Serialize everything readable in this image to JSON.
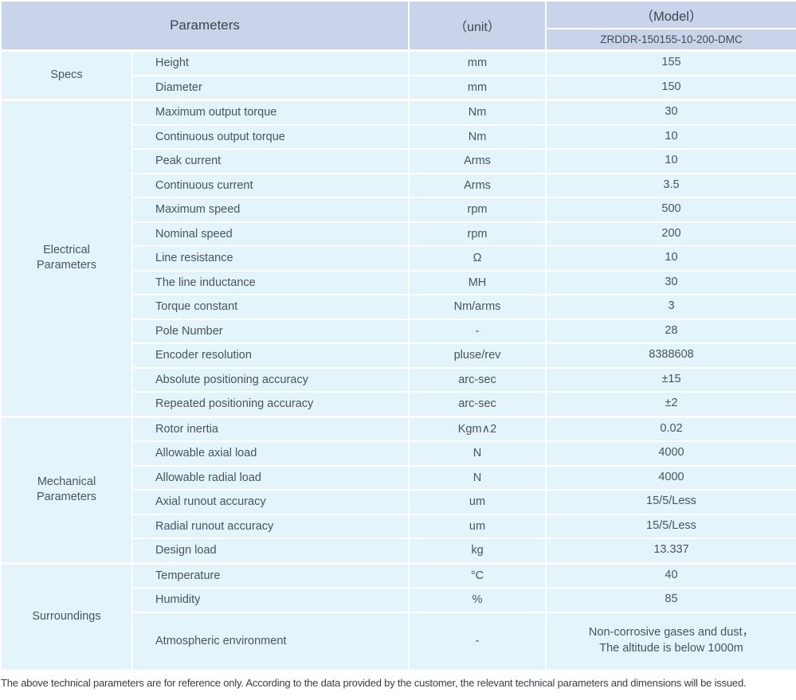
{
  "colors": {
    "header_bg": "#c9d4ea",
    "body_bg": "#e3f4fb",
    "grid": "#ffffff",
    "text": "#4b535c"
  },
  "table": {
    "header": {
      "parameters_label": "Parameters",
      "unit_label": "（unit）",
      "model_label": "（Model）",
      "model_value": "ZRDDR-150155-10-200-DMC"
    },
    "sections": [
      {
        "group": "Specs",
        "rows": [
          {
            "name": "Height",
            "unit": "mm",
            "value": "155"
          },
          {
            "name": "Diameter",
            "unit": "mm",
            "value": "150"
          }
        ]
      },
      {
        "group": "Electrical\nParameters",
        "rows": [
          {
            "name": "Maximum output torque",
            "unit": "Nm",
            "value": "30"
          },
          {
            "name": "Continuous output torque",
            "unit": "Nm",
            "value": "10"
          },
          {
            "name": "Peak current",
            "unit": "Arms",
            "value": "10"
          },
          {
            "name": "Continuous current",
            "unit": "Arms",
            "value": "3.5"
          },
          {
            "name": "Maximum speed",
            "unit": "rpm",
            "value": "500"
          },
          {
            "name": "Nominal speed",
            "unit": "rpm",
            "value": "200"
          },
          {
            "name": "Line resistance",
            "unit": "Ω",
            "value": "10"
          },
          {
            "name": "The line inductance",
            "unit": "MH",
            "value": "30"
          },
          {
            "name": "Torque constant",
            "unit": "Nm/arms",
            "value": "3"
          },
          {
            "name": "Pole Number",
            "unit": "-",
            "value": "28"
          },
          {
            "name": "Encoder resolution",
            "unit": "pluse/rev",
            "value": "8388608"
          },
          {
            "name": "Absolute positioning accuracy",
            "unit": "arc-sec",
            "value": "±15"
          },
          {
            "name": "Repeated positioning accuracy",
            "unit": "arc-sec",
            "value": "±2"
          }
        ]
      },
      {
        "group": "Mechanical\nParameters",
        "rows": [
          {
            "name": "Rotor inertia",
            "unit": "Kgm∧2",
            "value": "0.02"
          },
          {
            "name": "Allowable axial load",
            "unit": "N",
            "value": "4000"
          },
          {
            "name": "Allowable radial load",
            "unit": "N",
            "value": "4000"
          },
          {
            "name": "Axial runout accuracy",
            "unit": "um",
            "value": "15/5/Less"
          },
          {
            "name": "Radial runout accuracy",
            "unit": "um",
            "value": "15/5/Less"
          },
          {
            "name": "Design load",
            "unit": "kg",
            "value": "13.337"
          }
        ]
      },
      {
        "group": "Surroundings",
        "rows": [
          {
            "name": "Temperature",
            "unit": "°C",
            "value": "40"
          },
          {
            "name": "Humidity",
            "unit": "%",
            "value": "85"
          },
          {
            "name": "Atmospheric environment",
            "unit": "-",
            "value": "Non-corrosive gases and dust，\nThe altitude is below 1000m"
          }
        ]
      }
    ],
    "footnote": "The above technical parameters are for reference only. According to the data provided by the customer, the relevant technical parameters and dimensions will be issued."
  }
}
